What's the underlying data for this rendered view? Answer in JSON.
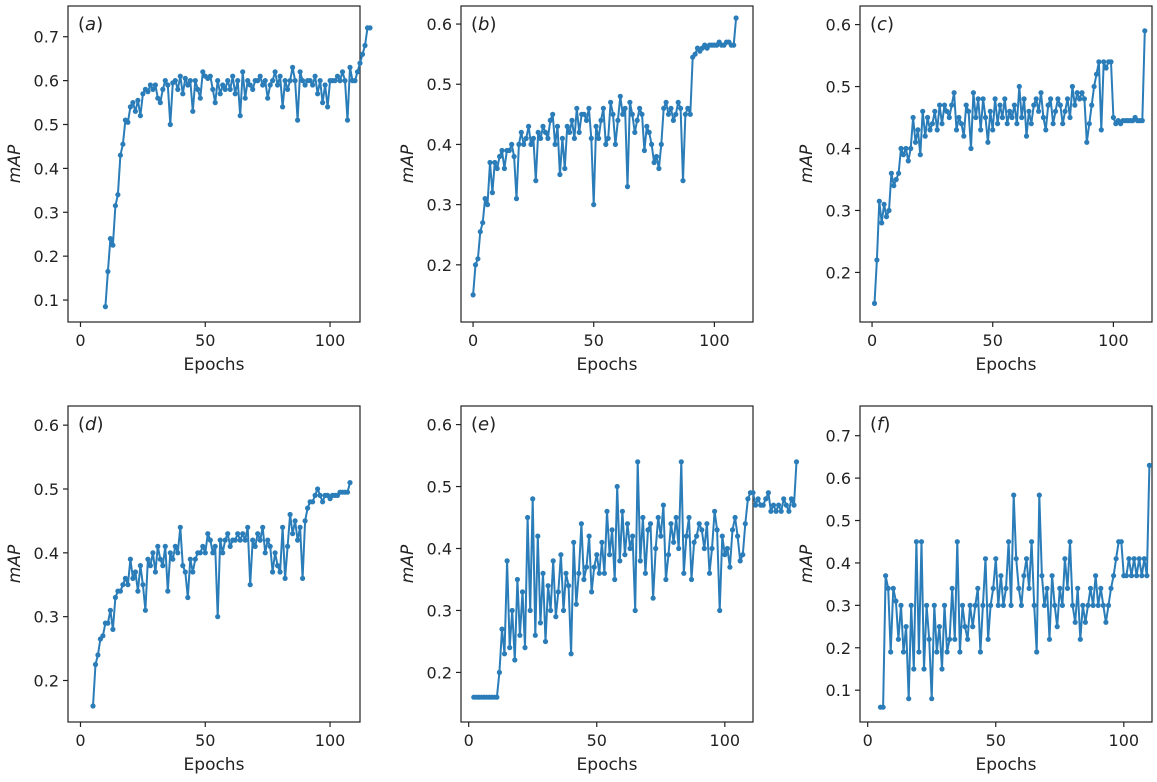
{
  "colors": {
    "series": "#2a7db8",
    "axes": "#222222",
    "background": "#ffffff"
  },
  "chart_data": [
    {
      "type": "line",
      "panel": "(a)",
      "tag_open": "(",
      "tag_letter": "a",
      "tag_close": ")",
      "xlabel": "Epochs",
      "ylabel": "mAP",
      "xlim": [
        -5,
        112
      ],
      "ylim": [
        0.05,
        0.77
      ],
      "xticks": [
        0,
        50,
        100
      ],
      "yticks": [
        0.1,
        0.2,
        0.3,
        0.4,
        0.5,
        0.6,
        0.7
      ],
      "x_start": 10,
      "y": [
        0.085,
        0.165,
        0.24,
        0.225,
        0.315,
        0.34,
        0.43,
        0.455,
        0.51,
        0.505,
        0.54,
        0.55,
        0.53,
        0.555,
        0.52,
        0.57,
        0.58,
        0.575,
        0.59,
        0.58,
        0.59,
        0.56,
        0.55,
        0.58,
        0.6,
        0.59,
        0.5,
        0.595,
        0.6,
        0.58,
        0.61,
        0.57,
        0.605,
        0.59,
        0.6,
        0.53,
        0.6,
        0.58,
        0.56,
        0.62,
        0.61,
        0.605,
        0.61,
        0.58,
        0.55,
        0.6,
        0.57,
        0.59,
        0.58,
        0.6,
        0.58,
        0.61,
        0.57,
        0.6,
        0.52,
        0.62,
        0.56,
        0.6,
        0.59,
        0.58,
        0.6,
        0.6,
        0.61,
        0.59,
        0.6,
        0.56,
        0.59,
        0.6,
        0.62,
        0.59,
        0.61,
        0.54,
        0.6,
        0.58,
        0.6,
        0.63,
        0.6,
        0.51,
        0.62,
        0.6,
        0.59,
        0.6,
        0.6,
        0.59,
        0.61,
        0.57,
        0.6,
        0.55,
        0.59,
        0.54,
        0.6,
        0.6,
        0.6,
        0.61,
        0.6,
        0.62,
        0.6,
        0.51,
        0.63,
        0.6,
        0.6,
        0.62,
        0.64,
        0.66,
        0.68,
        0.72,
        0.72
      ]
    },
    {
      "type": "line",
      "panel": "(b)",
      "tag_open": "(",
      "tag_letter": "b",
      "tag_close": ")",
      "xlabel": "Epochs",
      "ylabel": "mAP",
      "xlim": [
        -5,
        116
      ],
      "ylim": [
        0.105,
        0.63
      ],
      "xticks": [
        0,
        50,
        100
      ],
      "yticks": [
        0.2,
        0.3,
        0.4,
        0.5,
        0.6
      ],
      "x_start": 0,
      "y": [
        0.15,
        0.2,
        0.21,
        0.255,
        0.27,
        0.31,
        0.3,
        0.37,
        0.32,
        0.37,
        0.36,
        0.38,
        0.39,
        0.36,
        0.39,
        0.39,
        0.4,
        0.38,
        0.31,
        0.4,
        0.42,
        0.4,
        0.41,
        0.43,
        0.4,
        0.41,
        0.34,
        0.42,
        0.41,
        0.43,
        0.42,
        0.41,
        0.44,
        0.45,
        0.4,
        0.43,
        0.35,
        0.41,
        0.36,
        0.43,
        0.42,
        0.44,
        0.41,
        0.46,
        0.42,
        0.45,
        0.45,
        0.44,
        0.46,
        0.41,
        0.3,
        0.43,
        0.41,
        0.44,
        0.46,
        0.4,
        0.41,
        0.47,
        0.45,
        0.4,
        0.44,
        0.48,
        0.45,
        0.46,
        0.33,
        0.47,
        0.45,
        0.42,
        0.44,
        0.46,
        0.45,
        0.39,
        0.43,
        0.42,
        0.4,
        0.37,
        0.38,
        0.36,
        0.4,
        0.46,
        0.47,
        0.45,
        0.46,
        0.44,
        0.45,
        0.47,
        0.46,
        0.34,
        0.45,
        0.46,
        0.45,
        0.545,
        0.55,
        0.56,
        0.555,
        0.56,
        0.565,
        0.56,
        0.565,
        0.565,
        0.565,
        0.565,
        0.57,
        0.565,
        0.565,
        0.57,
        0.57,
        0.565,
        0.565,
        0.61
      ]
    },
    {
      "type": "line",
      "panel": "(c)",
      "tag_open": "(",
      "tag_letter": "c",
      "tag_close": ")",
      "xlabel": "Epochs",
      "ylabel": "mAP",
      "xlim": [
        -5,
        116
      ],
      "ylim": [
        0.12,
        0.63
      ],
      "xticks": [
        0,
        50,
        100
      ],
      "yticks": [
        0.2,
        0.3,
        0.4,
        0.5,
        0.6
      ],
      "x_start": 1,
      "y": [
        0.15,
        0.22,
        0.315,
        0.28,
        0.31,
        0.29,
        0.3,
        0.36,
        0.34,
        0.35,
        0.36,
        0.4,
        0.39,
        0.4,
        0.38,
        0.4,
        0.45,
        0.41,
        0.43,
        0.39,
        0.46,
        0.42,
        0.45,
        0.43,
        0.44,
        0.46,
        0.43,
        0.47,
        0.44,
        0.47,
        0.46,
        0.45,
        0.47,
        0.49,
        0.43,
        0.45,
        0.44,
        0.42,
        0.47,
        0.46,
        0.4,
        0.49,
        0.45,
        0.48,
        0.43,
        0.48,
        0.45,
        0.41,
        0.46,
        0.43,
        0.48,
        0.44,
        0.47,
        0.45,
        0.48,
        0.44,
        0.46,
        0.45,
        0.47,
        0.44,
        0.5,
        0.45,
        0.48,
        0.42,
        0.46,
        0.44,
        0.47,
        0.48,
        0.46,
        0.49,
        0.45,
        0.43,
        0.47,
        0.48,
        0.44,
        0.46,
        0.48,
        0.47,
        0.44,
        0.46,
        0.48,
        0.45,
        0.5,
        0.47,
        0.49,
        0.48,
        0.49,
        0.48,
        0.41,
        0.44,
        0.47,
        0.5,
        0.52,
        0.54,
        0.43,
        0.54,
        0.53,
        0.54,
        0.54,
        0.45,
        0.44,
        0.445,
        0.44,
        0.445,
        0.445,
        0.445,
        0.445,
        0.445,
        0.45,
        0.445,
        0.445,
        0.445,
        0.59
      ]
    },
    {
      "type": "line",
      "panel": "(d)",
      "tag_open": "(",
      "tag_letter": "d",
      "tag_close": ")",
      "xlabel": "Epochs",
      "ylabel": "mAP",
      "xlim": [
        -5,
        112
      ],
      "ylim": [
        0.135,
        0.63
      ],
      "xticks": [
        0,
        50,
        100
      ],
      "yticks": [
        0.2,
        0.3,
        0.4,
        0.5,
        0.6
      ],
      "x_start": 5,
      "y": [
        0.16,
        0.225,
        0.24,
        0.265,
        0.27,
        0.29,
        0.29,
        0.31,
        0.28,
        0.33,
        0.34,
        0.34,
        0.35,
        0.36,
        0.35,
        0.39,
        0.36,
        0.37,
        0.34,
        0.38,
        0.35,
        0.31,
        0.39,
        0.38,
        0.4,
        0.37,
        0.41,
        0.39,
        0.38,
        0.41,
        0.34,
        0.4,
        0.39,
        0.41,
        0.4,
        0.44,
        0.38,
        0.37,
        0.33,
        0.39,
        0.37,
        0.39,
        0.4,
        0.4,
        0.41,
        0.4,
        0.43,
        0.42,
        0.4,
        0.41,
        0.3,
        0.42,
        0.4,
        0.42,
        0.43,
        0.41,
        0.42,
        0.42,
        0.43,
        0.42,
        0.43,
        0.42,
        0.44,
        0.35,
        0.42,
        0.41,
        0.43,
        0.42,
        0.44,
        0.4,
        0.42,
        0.41,
        0.37,
        0.4,
        0.38,
        0.37,
        0.44,
        0.36,
        0.41,
        0.46,
        0.43,
        0.45,
        0.42,
        0.44,
        0.36,
        0.45,
        0.47,
        0.48,
        0.48,
        0.49,
        0.5,
        0.49,
        0.48,
        0.49,
        0.49,
        0.485,
        0.49,
        0.49,
        0.49,
        0.495,
        0.495,
        0.495,
        0.495,
        0.51
      ]
    },
    {
      "type": "line",
      "panel": "(e)",
      "tag_open": "(",
      "tag_letter": "e",
      "tag_close": ")",
      "xlabel": "Epochs",
      "ylabel": "mAP",
      "xlim": [
        -3,
        111
      ],
      "ylim": [
        0.12,
        0.63
      ],
      "xticks": [
        0,
        50,
        100
      ],
      "yticks": [
        0.2,
        0.3,
        0.4,
        0.5,
        0.6
      ],
      "x_start": 2,
      "y": [
        0.16,
        0.16,
        0.16,
        0.16,
        0.16,
        0.16,
        0.16,
        0.16,
        0.16,
        0.16,
        0.2,
        0.27,
        0.23,
        0.38,
        0.24,
        0.3,
        0.22,
        0.35,
        0.26,
        0.33,
        0.24,
        0.45,
        0.3,
        0.48,
        0.26,
        0.42,
        0.28,
        0.36,
        0.25,
        0.34,
        0.3,
        0.38,
        0.29,
        0.33,
        0.39,
        0.3,
        0.36,
        0.34,
        0.23,
        0.41,
        0.31,
        0.36,
        0.44,
        0.35,
        0.37,
        0.42,
        0.33,
        0.37,
        0.39,
        0.36,
        0.41,
        0.36,
        0.46,
        0.39,
        0.43,
        0.35,
        0.5,
        0.38,
        0.46,
        0.39,
        0.44,
        0.4,
        0.42,
        0.3,
        0.54,
        0.38,
        0.45,
        0.36,
        0.43,
        0.44,
        0.32,
        0.4,
        0.45,
        0.42,
        0.47,
        0.35,
        0.39,
        0.44,
        0.41,
        0.45,
        0.4,
        0.54,
        0.36,
        0.42,
        0.45,
        0.35,
        0.41,
        0.42,
        0.44,
        0.43,
        0.4,
        0.44,
        0.36,
        0.4,
        0.46,
        0.43,
        0.3,
        0.42,
        0.39,
        0.4,
        0.37,
        0.43,
        0.45,
        0.42,
        0.38,
        0.39,
        0.44,
        0.48,
        0.49,
        0.49,
        0.47,
        0.48,
        0.47,
        0.47,
        0.48,
        0.49,
        0.46,
        0.47,
        0.46,
        0.47,
        0.46,
        0.48,
        0.47,
        0.46,
        0.48,
        0.47,
        0.54
      ]
    },
    {
      "type": "line",
      "panel": "(f)",
      "tag_open": "(",
      "tag_letter": "f",
      "tag_close": ")",
      "xlabel": "Epochs",
      "ylabel": "mAP",
      "xlim": [
        -3,
        111
      ],
      "ylim": [
        0.025,
        0.77
      ],
      "xticks": [
        0,
        50,
        100
      ],
      "yticks": [
        0.1,
        0.2,
        0.3,
        0.4,
        0.5,
        0.6,
        0.7
      ],
      "x_start": 5,
      "y": [
        0.06,
        0.06,
        0.37,
        0.34,
        0.19,
        0.34,
        0.31,
        0.22,
        0.3,
        0.19,
        0.25,
        0.08,
        0.3,
        0.15,
        0.45,
        0.19,
        0.45,
        0.15,
        0.3,
        0.22,
        0.08,
        0.3,
        0.19,
        0.25,
        0.15,
        0.3,
        0.19,
        0.22,
        0.34,
        0.22,
        0.45,
        0.19,
        0.3,
        0.25,
        0.22,
        0.3,
        0.25,
        0.3,
        0.34,
        0.19,
        0.3,
        0.41,
        0.22,
        0.3,
        0.34,
        0.41,
        0.3,
        0.37,
        0.3,
        0.34,
        0.45,
        0.3,
        0.56,
        0.41,
        0.34,
        0.3,
        0.37,
        0.41,
        0.34,
        0.45,
        0.3,
        0.19,
        0.56,
        0.37,
        0.3,
        0.34,
        0.22,
        0.37,
        0.3,
        0.25,
        0.34,
        0.3,
        0.41,
        0.34,
        0.45,
        0.3,
        0.26,
        0.34,
        0.22,
        0.3,
        0.26,
        0.3,
        0.34,
        0.3,
        0.37,
        0.3,
        0.34,
        0.3,
        0.26,
        0.3,
        0.34,
        0.37,
        0.41,
        0.45,
        0.45,
        0.37,
        0.37,
        0.41,
        0.37,
        0.41,
        0.37,
        0.41,
        0.37,
        0.41,
        0.37,
        0.63
      ]
    }
  ]
}
